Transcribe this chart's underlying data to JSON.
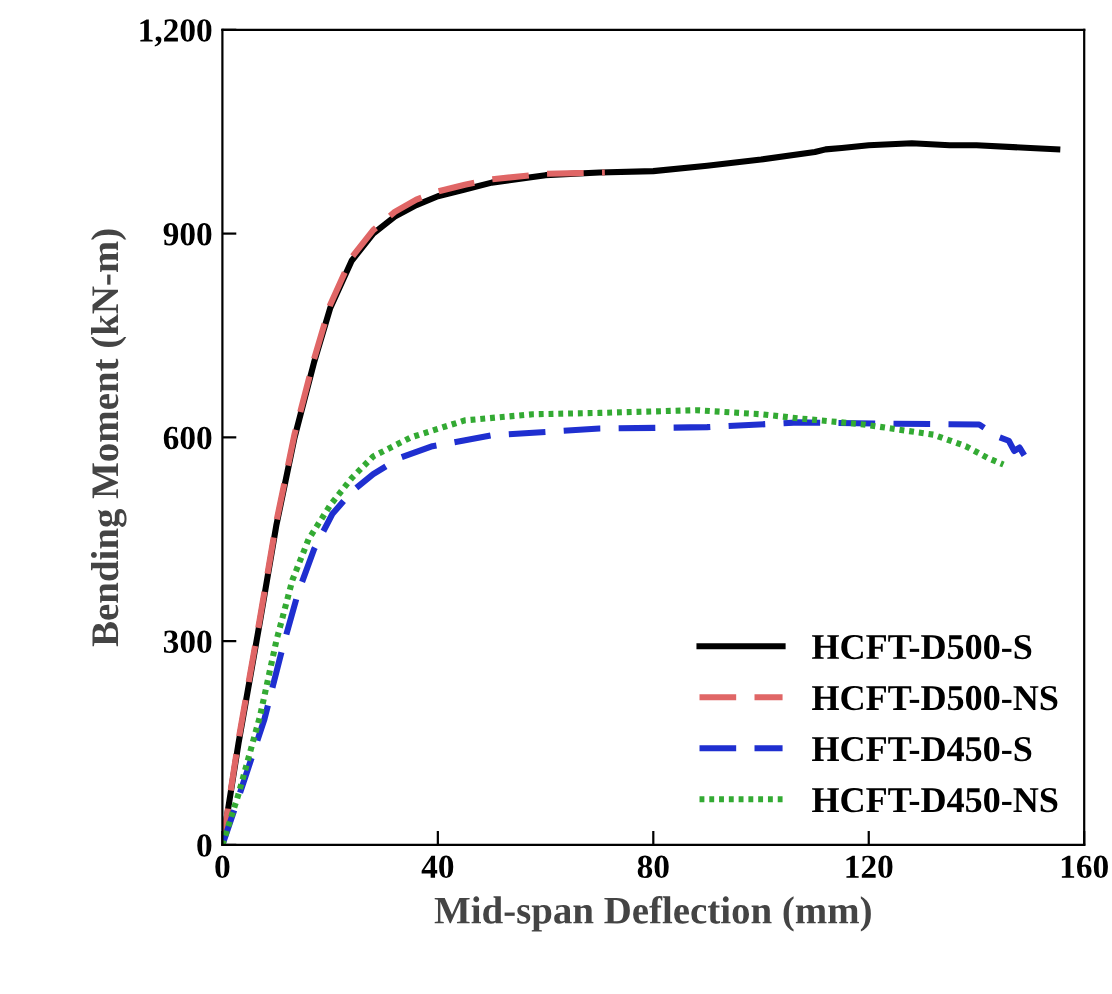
{
  "chart_data": {
    "type": "line",
    "xlabel": "Mid-span Deflection (mm)",
    "ylabel": "Bending Moment (kN-m)",
    "xlim": [
      0,
      160
    ],
    "ylim": [
      0,
      1200
    ],
    "xticks": [
      0,
      40,
      80,
      120,
      160
    ],
    "yticks": [
      {
        "value": 0,
        "label": "0"
      },
      {
        "value": 300,
        "label": "300"
      },
      {
        "value": 600,
        "label": "600"
      },
      {
        "value": 900,
        "label": "900"
      },
      {
        "value": 1200,
        "label": "1,200"
      }
    ],
    "grid": false,
    "legend": "bottom right",
    "marker": "none",
    "series": [
      {
        "name": "HCFT-D500-S",
        "color": "#000000",
        "line_style": "solid",
        "x": [
          0,
          3,
          7,
          10,
          13.4,
          17,
          20,
          24,
          28,
          32,
          36,
          40,
          45,
          50,
          60,
          70,
          80,
          90,
          100,
          110,
          112,
          115,
          120,
          128,
          135,
          140,
          150,
          155
        ],
        "values": [
          0,
          150,
          330,
          470,
          600,
          710,
          790,
          860,
          900,
          925,
          942,
          955,
          965,
          975,
          986,
          990,
          992,
          1000,
          1009,
          1020,
          1024,
          1026,
          1030,
          1033,
          1030,
          1030,
          1026,
          1024
        ]
      },
      {
        "name": "HCFT-D500-NS",
        "color": "#e06666",
        "line_style": "dashed",
        "x": [
          0,
          3,
          7,
          10,
          13.4,
          17,
          20,
          24,
          28,
          32,
          36,
          40,
          45,
          50,
          60,
          66,
          71
        ],
        "values": [
          0,
          155,
          335,
          475,
          605,
          715,
          795,
          865,
          905,
          932,
          950,
          962,
          972,
          980,
          988,
          989,
          990
        ]
      },
      {
        "name": "HCFT-D450-S",
        "color": "#1f2fd0",
        "line_style": "dashed",
        "x": [
          0,
          3,
          7.8,
          11,
          14,
          17,
          20.4,
          24,
          28,
          33,
          39,
          50,
          60,
          70,
          90,
          107,
          125,
          140.5,
          144,
          146,
          147,
          148,
          149
        ],
        "values": [
          0,
          70,
          185,
          285,
          370,
          435,
          487,
          520,
          546,
          570,
          587,
          603,
          608,
          613,
          615,
          622,
          620,
          619,
          601,
          595,
          580,
          585,
          572
        ]
      },
      {
        "name": "HCFT-D450-NS",
        "color": "#33aa33",
        "line_style": "dotted",
        "x": [
          0,
          3,
          7,
          10,
          13,
          16,
          20,
          24,
          28,
          35,
          45,
          57.6,
          70,
          88,
          100,
          107,
          119,
          132,
          138,
          142,
          145
        ],
        "values": [
          0,
          75,
          190,
          300,
          390,
          450,
          500,
          540,
          572,
          600,
          625,
          634,
          636,
          640,
          634,
          628,
          619,
          604,
          587,
          570,
          560
        ]
      }
    ]
  }
}
